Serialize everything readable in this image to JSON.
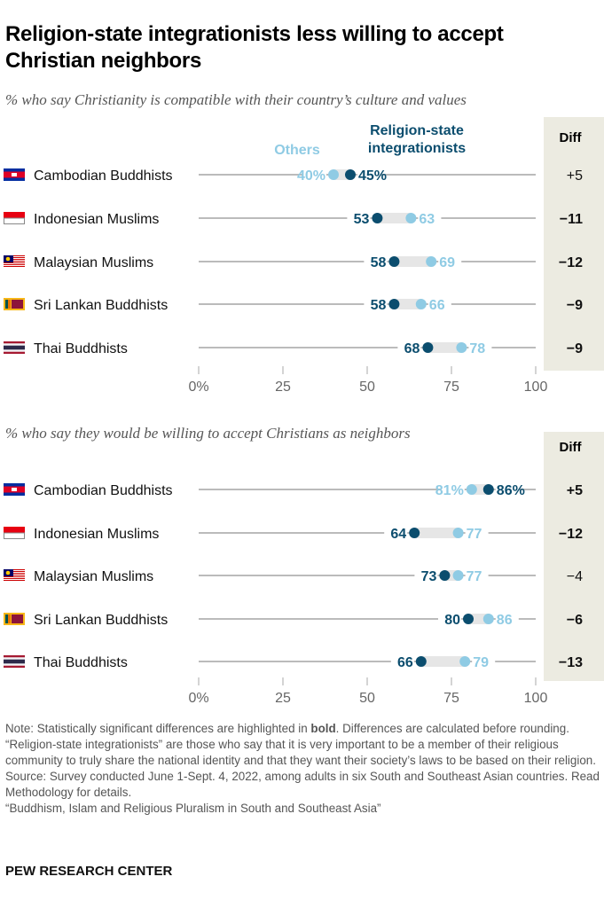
{
  "title": "Religion-state integrationists less willing to accept Christian neighbors",
  "legend": {
    "others": "Others",
    "integrationists": "Religion-state integrationists"
  },
  "diff_header": "Diff",
  "colors": {
    "others": "#8fcbe4",
    "integrationists": "#0b4d6e",
    "range": "#e6e6e6",
    "diff_bg": "#ecebe1"
  },
  "chart_data": [
    {
      "type": "dot-range",
      "title": "% who say Christianity is compatible with their country’s culture and values",
      "xlim": [
        0,
        100
      ],
      "ticks": [
        "0%",
        "25",
        "50",
        "75",
        "100"
      ],
      "categories": [
        "Cambodian Buddhists",
        "Indonesian Muslims",
        "Malaysian Muslims",
        "Sri Lankan Buddhists",
        "Thai Buddhists"
      ],
      "series": [
        {
          "name": "Others",
          "values": [
            40,
            63,
            69,
            66,
            78
          ]
        },
        {
          "name": "Religion-state integrationists",
          "values": [
            45,
            53,
            58,
            58,
            68
          ]
        }
      ],
      "diff": [
        "+5",
        "−11",
        "−12",
        "−9",
        "−9"
      ],
      "diff_bold": [
        false,
        true,
        true,
        true,
        true
      ]
    },
    {
      "type": "dot-range",
      "title": "% who say they would be willing to accept Christians as neighbors",
      "xlim": [
        0,
        100
      ],
      "ticks": [
        "0%",
        "25",
        "50",
        "75",
        "100"
      ],
      "categories": [
        "Cambodian Buddhists",
        "Indonesian Muslims",
        "Malaysian Muslims",
        "Sri Lankan Buddhists",
        "Thai Buddhists"
      ],
      "series": [
        {
          "name": "Others",
          "values": [
            81,
            77,
            77,
            86,
            79
          ]
        },
        {
          "name": "Religion-state integrationists",
          "values": [
            86,
            64,
            73,
            80,
            66
          ]
        }
      ],
      "diff": [
        "+5",
        "−12",
        "−4",
        "−6",
        "−13"
      ],
      "diff_bold": [
        true,
        true,
        false,
        true,
        true
      ]
    }
  ],
  "flags": [
    "cambodia-flag",
    "indonesia-flag",
    "malaysia-flag",
    "sri-lanka-flag",
    "thailand-flag"
  ],
  "note": {
    "p1a": "Note: Statistically significant differences are highlighted in ",
    "p1b": "bold",
    "p1c": ". Differences are calculated before rounding. “Religion-state integrationists” are those who say that it is very important to be a member of their religious community to truly share the national identity and that they want their society’s laws to be based on their religion.",
    "source": "Source: Survey conducted June 1-Sept. 4, 2022, among adults in six South and Southeast Asian countries. Read Methodology for details.",
    "report": "“Buddhism, Islam and Religious Pluralism in South and Southeast Asia”"
  },
  "brand": "PEW RESEARCH CENTER"
}
